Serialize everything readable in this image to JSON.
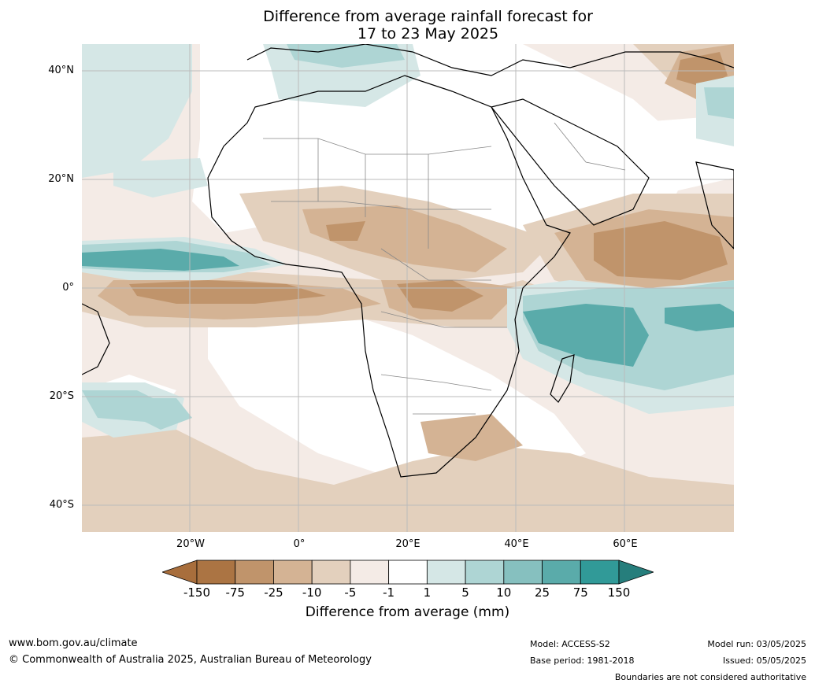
{
  "title_line1": "Difference from average rainfall forecast for",
  "title_line2": "17 to 23 May 2025",
  "lat_labels": [
    "40°N",
    "20°N",
    "0°",
    "20°S",
    "40°S"
  ],
  "lon_labels": [
    "20°W",
    "0°",
    "20°E",
    "40°E",
    "60°E"
  ],
  "legend": {
    "title": "Difference from average (mm)",
    "ticks": [
      "-150",
      "-75",
      "-25",
      "-10",
      "-5",
      "-1",
      "1",
      "5",
      "10",
      "25",
      "75",
      "150"
    ],
    "colors": [
      "#a86e3c",
      "#ab7443",
      "#c0946b",
      "#d4b394",
      "#e3d0bd",
      "#f4ebe6",
      "#ffffff",
      "#d5e7e6",
      "#aed5d4",
      "#86c0bf",
      "#5aabaa",
      "#319a98",
      "#267e7c"
    ]
  },
  "footer": {
    "website": "www.bom.gov.au/climate",
    "copyright": "© Commonwealth of Australia 2025, Australian Bureau of Meteorology",
    "model": "Model: ACCESS-S2",
    "base_period": "Base period: 1981-2018",
    "model_run": "Model run: 03/05/2025",
    "issued": "Issued: 05/05/2025",
    "boundaries": "Boundaries are not considered authoritative"
  }
}
